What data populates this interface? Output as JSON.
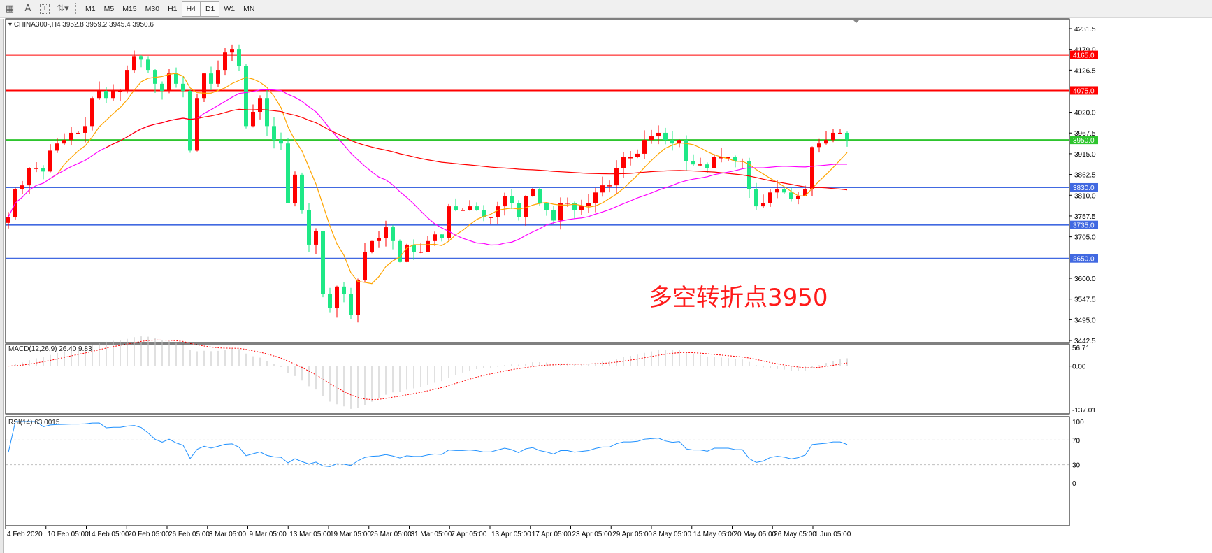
{
  "toolbar": {
    "icons": [
      "period-separators-icon",
      "text-icon",
      "text-label-icon",
      "arrows-icon"
    ],
    "text_icon_glyph": "A",
    "label_icon_glyph": "T",
    "timeframes": [
      "M1",
      "M5",
      "M15",
      "M30",
      "H1",
      "H4",
      "D1",
      "W1",
      "MN"
    ],
    "active_timeframe": "H4"
  },
  "chart": {
    "symbol_label": "CHINA300-,H4  3952.8 3959.2 3945.4 3950.6",
    "annotation": "多空转折点3950",
    "up_color": "#ff0000",
    "down_color": "#1ee886",
    "ma_colors": [
      "#ffa500",
      "#ff00ff",
      "#ff0000"
    ],
    "price_ticks": [
      "4231.5",
      "4179.0",
      "4126.5",
      "4020.0",
      "3967.5",
      "3915.0",
      "3862.5",
      "3810.0",
      "3757.5",
      "3705.0",
      "3600.0",
      "3547.5",
      "3495.0",
      "3442.5"
    ],
    "levels": [
      {
        "price": 4165.0,
        "label": "4165.0",
        "color": "#ff0000"
      },
      {
        "price": 4075.0,
        "label": "4075.0",
        "color": "#ff0000"
      },
      {
        "price": 3950.0,
        "label": "3950.0",
        "color": "#2ec52e"
      },
      {
        "price": 3830.0,
        "label": "3830.0",
        "color": "#4169e1"
      },
      {
        "price": 3735.0,
        "label": "3735.0",
        "color": "#4169e1"
      },
      {
        "price": 3650.0,
        "label": "3650.0",
        "color": "#4169e1"
      }
    ],
    "closes": [
      3755,
      3826,
      3835,
      3879,
      3879,
      3870,
      3923,
      3941,
      3950,
      3968,
      3968,
      3985,
      4056,
      4074,
      4056,
      4074,
      4074,
      4127,
      4162,
      4153,
      4127,
      4092,
      4074,
      4118,
      4092,
      4074,
      3923,
      4056,
      4118,
      4092,
      4127,
      4171,
      4180,
      4136,
      3985,
      4021,
      4056,
      3985,
      3950,
      3941,
      3791,
      3862,
      3773,
      3685,
      3720,
      3561,
      3525,
      3579,
      3561,
      3508,
      3596,
      3667,
      3694,
      3702,
      3729,
      3694,
      3641,
      3685,
      3667,
      3667,
      3694,
      3711,
      3702,
      3782,
      3773,
      3773,
      3782,
      3773,
      3755,
      3755,
      3782,
      3808,
      3791,
      3755,
      3808,
      3826,
      3791,
      3773,
      3746,
      3791,
      3791,
      3773,
      3782,
      3791,
      3817,
      3835,
      3835,
      3879,
      3906,
      3906,
      3915,
      3950,
      3959,
      3968,
      3950,
      3941,
      3950,
      3897,
      3888,
      3888,
      3879,
      3906,
      3906,
      3906,
      3897,
      3897,
      3826,
      3782,
      3791,
      3817,
      3826,
      3817,
      3800,
      3808,
      3826,
      3932,
      3941,
      3950,
      3968,
      3968,
      3951
    ],
    "date_labels": [
      "4 Feb 2020",
      "10 Feb 05:00",
      "14 Feb 05:00",
      "20 Feb 05:00",
      "26 Feb 05:00",
      "3 Mar 05:00",
      "9 Mar 05:00",
      "13 Mar 05:00",
      "19 Mar 05:00",
      "25 Mar 05:00",
      "31 Mar 05:00",
      "7 Apr 05:00",
      "13 Apr 05:00",
      "17 Apr 05:00",
      "23 Apr 05:00",
      "29 Apr 05:00",
      "8 May 05:00",
      "14 May 05:00",
      "20 May 05:00",
      "26 May 05:00",
      "1 Jun 05:00"
    ]
  },
  "macd": {
    "label": "MACD(12,26,9) 26.40 9.83",
    "ticks": [
      "56.71",
      "0.00",
      "-137.01"
    ],
    "histogram_color": "#c0c0c0",
    "signal_color": "#ff0000"
  },
  "rsi": {
    "label": "RSI(14) 63.0015",
    "ticks": [
      "100",
      "70",
      "30",
      "0"
    ],
    "levels": [
      70,
      30
    ],
    "line_color": "#1e90ff"
  }
}
